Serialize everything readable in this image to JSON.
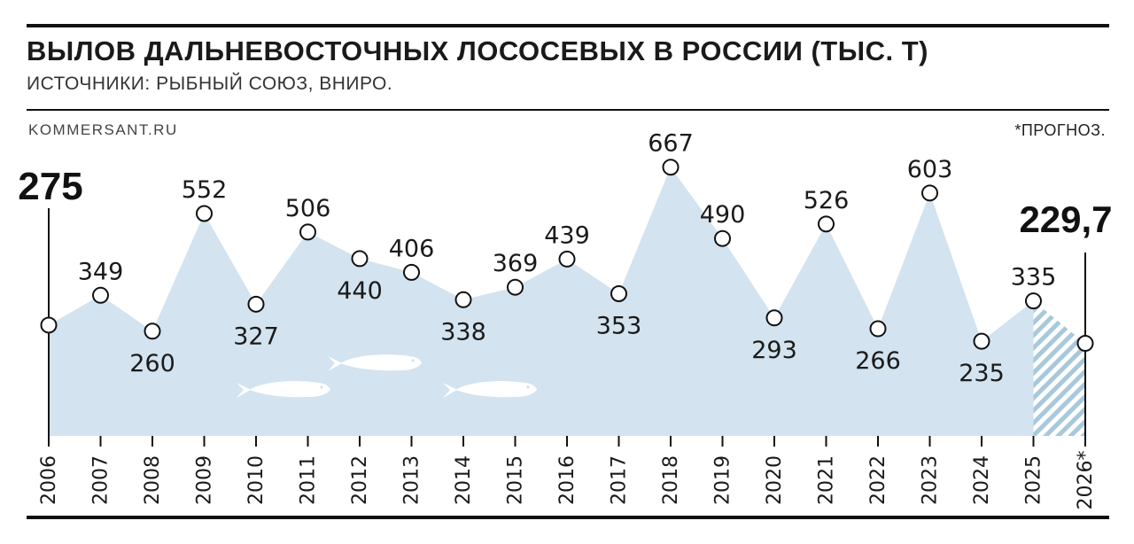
{
  "header": {
    "title": "ВЫЛОВ ДАЛЬНЕВОСТОЧНЫХ ЛОСОСЕВЫХ В РОССИИ (ТЫС. Т)",
    "subtitle": "ИСТОЧНИКИ: РЫБНЫЙ СОЮЗ, ВНИРО.",
    "source": "KOMMERSANT.RU",
    "note": "*ПРОГНОЗ."
  },
  "colors": {
    "area_fill": "#d3e3ef",
    "forecast_hatch": "#a8c8dc",
    "marker_fill": "#ffffff",
    "line": "#111111",
    "fish": "#ffffff"
  },
  "chart_data": {
    "type": "area",
    "title": "ВЫЛОВ ДАЛЬНЕВОСТОЧНЫХ ЛОСОСЕВЫХ В РОССИИ (ТЫС. Т)",
    "xlabel": "",
    "ylabel": "",
    "categories": [
      "2006",
      "2007",
      "2008",
      "2009",
      "2010",
      "2011",
      "2012",
      "2013",
      "2014",
      "2015",
      "2016",
      "2017",
      "2018",
      "2019",
      "2020",
      "2021",
      "2022",
      "2023",
      "2024",
      "2025",
      "2026*"
    ],
    "values": [
      275,
      349,
      260,
      552,
      327,
      506,
      440,
      406,
      338,
      369,
      439,
      353,
      667,
      490,
      293,
      526,
      266,
      603,
      235,
      335,
      229.7
    ],
    "labels": [
      "275",
      "349",
      "260",
      "552",
      "327",
      "506",
      "440",
      "406",
      "338",
      "369",
      "439",
      "353",
      "667",
      "490",
      "293",
      "526",
      "266",
      "603",
      "235",
      "335",
      "229,7"
    ],
    "highlighted": [
      "2006",
      "2026*"
    ],
    "forecast": [
      "2026*"
    ],
    "ylim": [
      0,
      700
    ],
    "grid": false,
    "legend": "none"
  }
}
